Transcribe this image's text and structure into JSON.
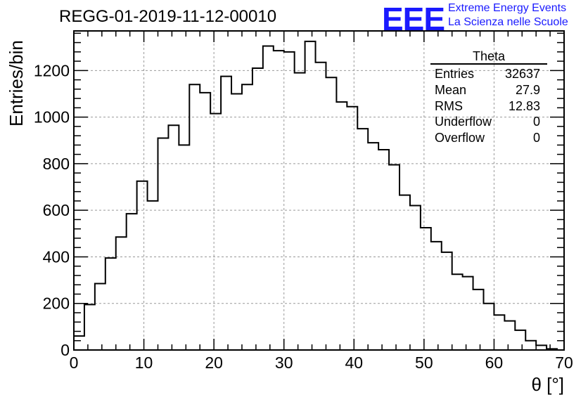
{
  "chart_data": {
    "type": "histogram",
    "title": "REGG-01-2019-11-12-00010",
    "xlabel": "θ [°]",
    "ylabel": "Entries/bin",
    "xlim": [
      0,
      70
    ],
    "ylim": [
      0,
      1370
    ],
    "grid": true,
    "bin_width": 1.5,
    "bin_edges_start": 0,
    "xticks": [
      "0",
      "10",
      "20",
      "30",
      "40",
      "50",
      "60",
      "70"
    ],
    "yticks": [
      "0",
      "200",
      "400",
      "600",
      "800",
      "1000",
      "1200"
    ],
    "xtick_values": [
      0,
      10,
      20,
      30,
      40,
      50,
      60,
      70
    ],
    "ytick_values": [
      0,
      200,
      400,
      600,
      800,
      1000,
      1200
    ],
    "values": [
      60,
      195,
      285,
      395,
      485,
      585,
      725,
      640,
      910,
      965,
      880,
      1140,
      1105,
      1015,
      1175,
      1100,
      1140,
      1210,
      1305,
      1285,
      1280,
      1190,
      1325,
      1235,
      1170,
      1065,
      1045,
      950,
      890,
      860,
      795,
      665,
      620,
      525,
      465,
      420,
      325,
      315,
      260,
      200,
      150,
      125,
      85,
      40,
      20,
      5
    ],
    "legend_position": "top-right"
  },
  "stats": {
    "title": "Theta",
    "rows": [
      {
        "label": "Entries",
        "value": "32637"
      },
      {
        "label": "Mean",
        "value": "27.9"
      },
      {
        "label": "RMS",
        "value": "12.83"
      },
      {
        "label": "Underflow",
        "value": "0"
      },
      {
        "label": "Overflow",
        "value": "0"
      }
    ]
  },
  "logo": {
    "mark": "EEE",
    "line1": "Extreme Energy Events",
    "line2": "La Scienza nelle Scuole",
    "color": "#1a1aff"
  }
}
